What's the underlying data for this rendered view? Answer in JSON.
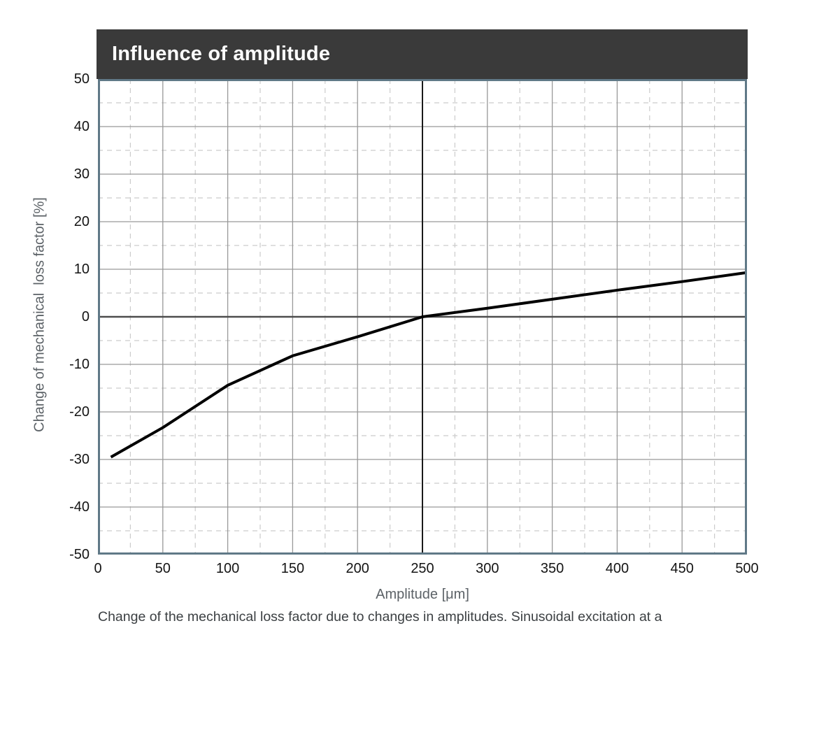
{
  "figure": {
    "title": "Influence of amplitude",
    "caption": "Change of the mechanical loss factor due to changes in amplitudes. Sinusoidal excitation at a"
  },
  "chart_data": {
    "type": "line",
    "title": "Influence of amplitude",
    "xlabel": "Amplitude [μm]",
    "ylabel": "Change of mechanical  loss factor [%]",
    "xlim": [
      0,
      500
    ],
    "ylim": [
      -50,
      50
    ],
    "x_tick_values": [
      0,
      50,
      100,
      150,
      200,
      250,
      300,
      350,
      400,
      450,
      500
    ],
    "x_tick_labels": [
      "0",
      "50",
      "100",
      "150",
      "200",
      "250",
      "300",
      "350",
      "400",
      "450",
      "500"
    ],
    "y_tick_values": [
      50,
      40,
      30,
      20,
      10,
      0,
      -10,
      -20,
      -30,
      -40,
      -50
    ],
    "y_tick_labels": [
      "50",
      "40",
      "30",
      "20",
      "10",
      "0",
      "-10",
      "-20",
      "-30",
      "-40",
      "-50"
    ],
    "x_minor_step": 25,
    "y_minor_step": 5,
    "grid": {
      "major": "solid",
      "minor": "dashed",
      "on": true
    },
    "reference_lines": {
      "vertical_x": 250,
      "horizontal_y": 0
    },
    "legend": "none",
    "series": [
      {
        "name": "change-of-mechanical-loss-factor",
        "x": [
          10,
          50,
          100,
          150,
          200,
          250,
          300,
          350,
          400,
          450,
          500
        ],
        "y": [
          -29.5,
          -23.3,
          -14.4,
          -8.2,
          -4.2,
          0,
          1.8,
          3.7,
          5.6,
          7.4,
          9.3
        ]
      }
    ],
    "colors": {
      "header_bg": "#3a3a3a",
      "title_text": "#ffffff",
      "frame": "#607987",
      "grid_major": "#999999",
      "grid_minor": "#cccccc",
      "zero_line": "#4d4d4d",
      "reference_line": "#1a1a1a",
      "series_line": "#000000",
      "tick_text": "#141414",
      "axis_title_text": "#5c6267",
      "caption_text": "#3c4043"
    }
  }
}
